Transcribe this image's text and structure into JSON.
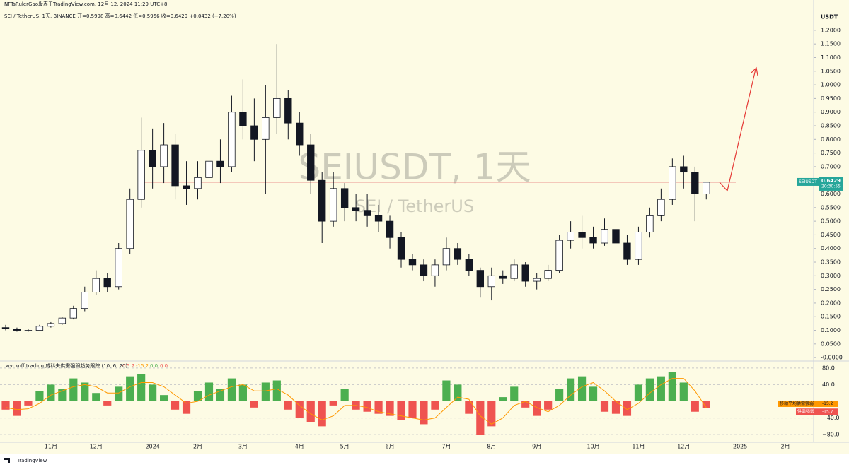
{
  "header": {
    "author": "NFTsRulerGao发表于TradingView.com, 12月 12, 2024 11:29 UTC+8",
    "symbol_line": "SEI / TetherUS, 1天, BINANCE  开=0.5998  高=0.6442  低=0.5956  收=0.6429  +0.0432 (+7.20%)",
    "currency": "USDT",
    "watermark": "SEIUSDT, 1天",
    "watermark_sub": "SEI / TetherUS",
    "footer": "TradingView",
    "symbol_tag": "SEIUSDT",
    "countdown": "20:30:55",
    "last_price": 0.6429,
    "last_price_label": "0.6429"
  },
  "chart_data": [
    {
      "type": "candlestick",
      "categories": [
        null,
        null,
        null,
        null,
        "11月",
        null,
        null,
        null,
        "12月",
        null,
        null,
        null,
        null,
        "2024",
        null,
        null,
        null,
        "2月",
        null,
        null,
        null,
        "3月",
        null,
        null,
        null,
        null,
        "4月",
        null,
        null,
        null,
        "5月",
        null,
        null,
        null,
        "6月",
        null,
        null,
        null,
        null,
        "7月",
        null,
        null,
        null,
        "8月",
        null,
        null,
        null,
        "9月",
        null,
        null,
        null,
        null,
        "10月",
        null,
        null,
        null,
        "11月",
        null,
        null,
        null,
        "12月",
        null,
        null,
        null,
        null,
        "2025",
        null,
        null,
        null,
        "2月",
        null,
        null
      ],
      "open": [
        0.11,
        0.105,
        0.1,
        0.1,
        0.115,
        0.125,
        0.145,
        0.18,
        0.24,
        0.29,
        0.26,
        0.4,
        0.58,
        0.76,
        0.7,
        0.78,
        0.63,
        0.62,
        0.66,
        0.72,
        0.7,
        0.9,
        0.85,
        0.8,
        0.88,
        0.95,
        0.86,
        0.78,
        0.65,
        0.5,
        0.62,
        0.55,
        0.54,
        0.52,
        0.5,
        0.44,
        0.36,
        0.34,
        0.3,
        0.34,
        0.4,
        0.36,
        0.32,
        0.26,
        0.3,
        0.29,
        0.34,
        0.28,
        0.29,
        0.32,
        0.43,
        0.46,
        0.44,
        0.42,
        0.47,
        0.42,
        0.36,
        0.46,
        0.52,
        0.58,
        0.7,
        0.68,
        0.6,
        null,
        null,
        null,
        null,
        null,
        null,
        null,
        null,
        null
      ],
      "high": [
        0.12,
        0.11,
        0.105,
        0.12,
        0.13,
        0.15,
        0.19,
        0.26,
        0.32,
        0.31,
        0.42,
        0.62,
        0.88,
        0.84,
        0.86,
        0.82,
        0.72,
        0.72,
        0.78,
        0.8,
        0.96,
        1.02,
        0.95,
        1.0,
        1.15,
        0.98,
        0.9,
        0.82,
        0.68,
        0.68,
        0.64,
        0.6,
        0.6,
        0.56,
        0.52,
        0.46,
        0.38,
        0.36,
        0.36,
        0.44,
        0.42,
        0.38,
        0.33,
        0.33,
        0.32,
        0.36,
        0.35,
        0.31,
        0.34,
        0.45,
        0.5,
        0.52,
        0.48,
        0.51,
        0.48,
        0.45,
        0.48,
        0.55,
        0.62,
        0.73,
        0.74,
        0.7,
        0.645,
        null,
        null,
        null,
        null,
        null,
        null,
        null,
        null,
        null
      ],
      "low": [
        0.1,
        0.095,
        0.095,
        0.1,
        0.11,
        0.12,
        0.14,
        0.17,
        0.23,
        0.24,
        0.25,
        0.38,
        0.55,
        0.62,
        0.64,
        0.58,
        0.56,
        0.58,
        0.62,
        0.64,
        0.68,
        0.8,
        0.72,
        0.6,
        0.82,
        0.8,
        0.74,
        0.6,
        0.42,
        0.48,
        0.5,
        0.5,
        0.48,
        0.46,
        0.4,
        0.33,
        0.32,
        0.28,
        0.26,
        0.32,
        0.34,
        0.3,
        0.22,
        0.21,
        0.27,
        0.28,
        0.26,
        0.25,
        0.28,
        0.31,
        0.4,
        0.4,
        0.4,
        0.41,
        0.4,
        0.34,
        0.34,
        0.44,
        0.5,
        0.56,
        0.62,
        0.5,
        0.58,
        null,
        null,
        null,
        null,
        null,
        null,
        null,
        null,
        null
      ],
      "close": [
        0.105,
        0.1,
        0.1,
        0.115,
        0.125,
        0.145,
        0.18,
        0.24,
        0.29,
        0.26,
        0.4,
        0.58,
        0.76,
        0.7,
        0.78,
        0.63,
        0.62,
        0.66,
        0.72,
        0.7,
        0.9,
        0.85,
        0.8,
        0.88,
        0.95,
        0.86,
        0.78,
        0.65,
        0.5,
        0.62,
        0.55,
        0.54,
        0.52,
        0.5,
        0.44,
        0.36,
        0.34,
        0.3,
        0.34,
        0.4,
        0.36,
        0.32,
        0.26,
        0.3,
        0.29,
        0.34,
        0.28,
        0.29,
        0.32,
        0.43,
        0.46,
        0.44,
        0.42,
        0.47,
        0.42,
        0.36,
        0.46,
        0.52,
        0.58,
        0.7,
        0.68,
        0.6,
        0.6429,
        null,
        null,
        null,
        null,
        null,
        null,
        null,
        null,
        null
      ],
      "up_color": "#ffffff",
      "down_color": "#131722",
      "wick_color": "#131722",
      "price_line_color": "#e57373",
      "ylim": [
        -0.01,
        1.28
      ],
      "yticks": [
        {
          "value": 1.2,
          "label": "1.2000"
        },
        {
          "value": 1.15,
          "label": "1.1500"
        },
        {
          "value": 1.1,
          "label": "1.1000"
        },
        {
          "value": 1.05,
          "label": "1.0500"
        },
        {
          "value": 1.0,
          "label": "1.0000"
        },
        {
          "value": 0.95,
          "label": "0.9500"
        },
        {
          "value": 0.9,
          "label": "0.9000"
        },
        {
          "value": 0.85,
          "label": "0.8500"
        },
        {
          "value": 0.8,
          "label": "0.8000"
        },
        {
          "value": 0.75,
          "label": "0.7500"
        },
        {
          "value": 0.7,
          "label": "0.7000"
        },
        {
          "value": 0.65,
          "label": "0.6500"
        },
        {
          "value": 0.6,
          "label": "0.6000"
        },
        {
          "value": 0.55,
          "label": "0.5500"
        },
        {
          "value": 0.5,
          "label": "0.5000"
        },
        {
          "value": 0.45,
          "label": "0.4500"
        },
        {
          "value": 0.4,
          "label": "0.4000"
        },
        {
          "value": 0.35,
          "label": "0.3500"
        },
        {
          "value": 0.3,
          "label": "0.3000"
        },
        {
          "value": 0.25,
          "label": "0.2500"
        },
        {
          "value": 0.2,
          "label": "0.2000"
        },
        {
          "value": 0.15,
          "label": "0.1500"
        },
        {
          "value": 0.1,
          "label": "0.1000"
        },
        {
          "value": 0.05,
          "label": "0.0500"
        },
        {
          "value": 0,
          "label": "-0.0000"
        }
      ],
      "grid": false
    },
    {
      "type": "bar",
      "title": "wyckoff trading 威科夫供需强弱趋势跟踪 (10, 6, 20)",
      "extra_values": [
        "0.0",
        "0.0"
      ],
      "series": [
        {
          "name": "供需强弱",
          "color": "#ef5350",
          "up_color": "#4caf50",
          "values": [
            -20,
            -35,
            -10,
            25,
            40,
            30,
            55,
            45,
            20,
            -10,
            35,
            60,
            65,
            40,
            15,
            -20,
            -30,
            25,
            45,
            30,
            55,
            40,
            -15,
            45,
            50,
            -20,
            -40,
            -50,
            -60,
            -10,
            30,
            -20,
            -25,
            -30,
            -35,
            -45,
            -40,
            -55,
            -20,
            50,
            40,
            -30,
            -80,
            -60,
            10,
            35,
            -15,
            -35,
            -20,
            30,
            55,
            60,
            35,
            -25,
            -30,
            -35,
            40,
            55,
            60,
            70,
            45,
            -25,
            -15.7,
            null,
            null,
            null,
            null,
            null,
            null,
            null,
            null,
            null
          ]
        },
        {
          "name": "移动平均供需强弱",
          "color": "#ff9800",
          "type": "line",
          "values": [
            -15,
            -20,
            -18,
            -5,
            15,
            25,
            35,
            40,
            35,
            20,
            20,
            35,
            45,
            45,
            35,
            15,
            -5,
            0,
            15,
            25,
            35,
            40,
            25,
            25,
            30,
            15,
            -10,
            -30,
            -45,
            -35,
            -10,
            -10,
            -15,
            -25,
            -30,
            -35,
            -40,
            -45,
            -40,
            -15,
            10,
            5,
            -35,
            -55,
            -40,
            -10,
            0,
            -15,
            -25,
            -10,
            15,
            35,
            45,
            25,
            0,
            -20,
            -5,
            20,
            40,
            55,
            55,
            25,
            -15.2,
            null,
            null,
            null,
            null,
            null,
            null,
            null,
            null,
            null
          ]
        }
      ],
      "ylim": [
        -95,
        95
      ],
      "yticks": [
        {
          "value": 80,
          "label": "80.0"
        },
        {
          "value": 40,
          "label": "40.0"
        },
        {
          "value": -40,
          "label": "−40.0"
        },
        {
          "value": -80,
          "label": "−80.0"
        }
      ],
      "grid": true
    }
  ]
}
